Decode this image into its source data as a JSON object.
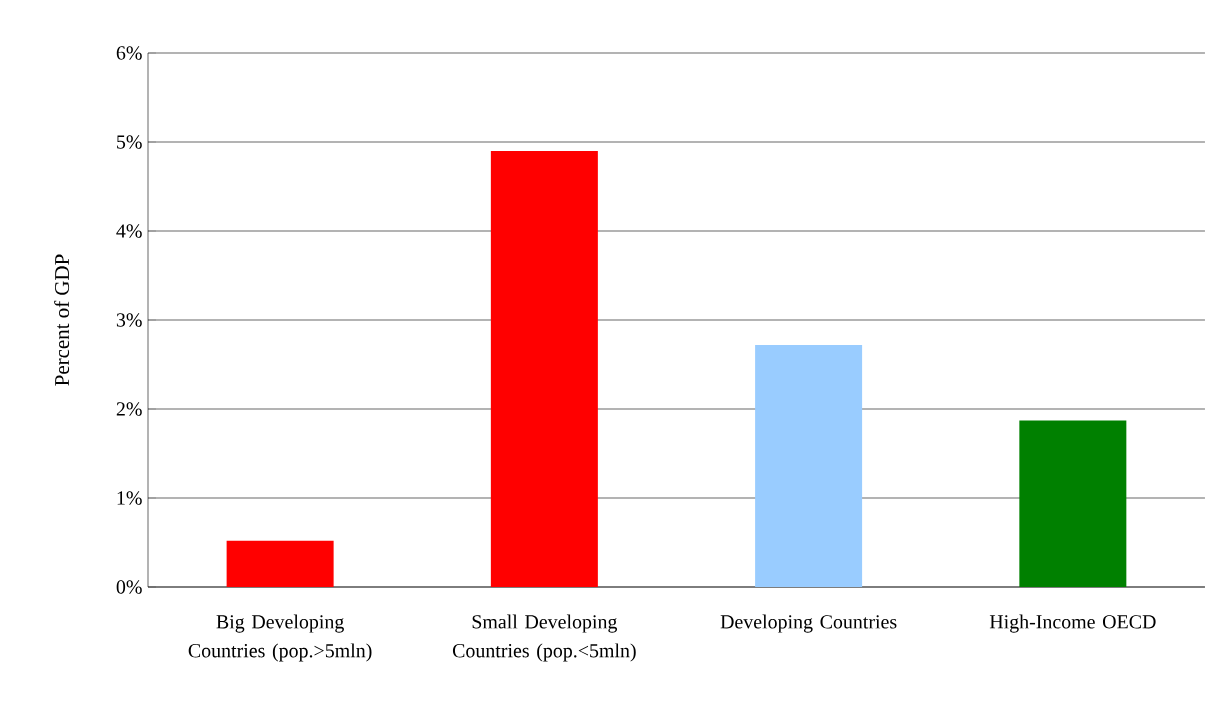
{
  "chart_data": {
    "type": "bar",
    "ylabel": "Percent of GDP",
    "categories": [
      "Big Developing Countries (pop.>5mln)",
      "Small Developing Countries (pop.<5mln)",
      "Developing Countries",
      "High-Income OECD"
    ],
    "values": [
      0.52,
      4.9,
      2.72,
      1.87
    ],
    "colors": [
      "#ff0000",
      "#ff0000",
      "#99ccff",
      "#008000"
    ],
    "ylim": [
      0,
      6
    ],
    "yticks": [
      {
        "value": 0,
        "label": "0%"
      },
      {
        "value": 1,
        "label": "1%"
      },
      {
        "value": 2,
        "label": "2%"
      },
      {
        "value": 3,
        "label": "3%"
      },
      {
        "value": 4,
        "label": "4%"
      },
      {
        "value": 5,
        "label": "5%"
      },
      {
        "value": 6,
        "label": "6%"
      }
    ],
    "grid": "y"
  }
}
